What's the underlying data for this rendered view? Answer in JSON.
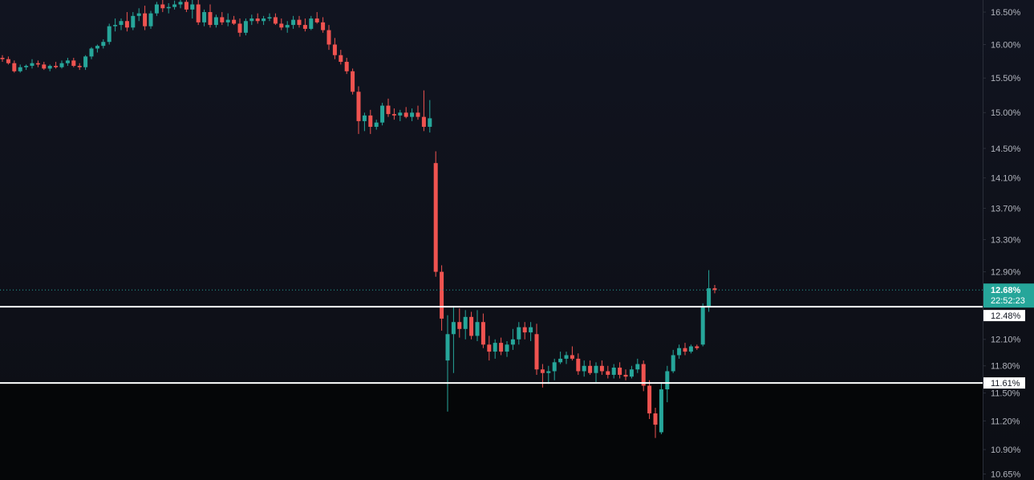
{
  "chart_data": {
    "type": "candlestick",
    "log_scale": true,
    "up_color": "#26a69a",
    "down_color": "#ef5350",
    "ylim": [
      10.59,
      16.69
    ],
    "yticks": [
      {
        "value": 16.5,
        "label": "16.50%"
      },
      {
        "value": 16.0,
        "label": "16.00%"
      },
      {
        "value": 15.5,
        "label": "15.50%"
      },
      {
        "value": 15.0,
        "label": "15.00%"
      },
      {
        "value": 14.5,
        "label": "14.50%"
      },
      {
        "value": 14.1,
        "label": "14.10%"
      },
      {
        "value": 13.7,
        "label": "13.70%"
      },
      {
        "value": 13.3,
        "label": "13.30%"
      },
      {
        "value": 12.9,
        "label": "12.90%"
      },
      {
        "value": 12.1,
        "label": "12.10%"
      },
      {
        "value": 11.8,
        "label": "11.80%"
      },
      {
        "value": 11.5,
        "label": "11.50%"
      },
      {
        "value": 11.2,
        "label": "11.20%"
      },
      {
        "value": 10.9,
        "label": "10.90%"
      },
      {
        "value": 10.65,
        "label": "10.65%"
      }
    ],
    "last_price": {
      "value": 12.68,
      "label": "12.68%"
    },
    "countdown": "22:52:23",
    "horizontal_lines": [
      {
        "value": 12.48,
        "label": "12.48%"
      },
      {
        "value": 11.61,
        "label": "11.61%"
      }
    ],
    "open": [
      15.8,
      15.78,
      15.72,
      15.6,
      15.66,
      15.68,
      15.72,
      15.7,
      15.64,
      15.68,
      15.66,
      15.72,
      15.76,
      15.68,
      15.66,
      15.82,
      15.94,
      15.98,
      16.04,
      16.28,
      16.3,
      16.36,
      16.26,
      16.44,
      16.48,
      16.28,
      16.48,
      16.62,
      16.56,
      16.58,
      16.62,
      16.66,
      16.54,
      16.62,
      16.34,
      16.5,
      16.3,
      16.42,
      16.34,
      16.38,
      16.32,
      16.18,
      16.36,
      16.4,
      16.36,
      16.4,
      16.42,
      16.32,
      16.26,
      16.3,
      16.38,
      16.3,
      16.24,
      16.4,
      16.34,
      16.22,
      16.0,
      15.84,
      15.74,
      15.6,
      15.3,
      14.88,
      14.96,
      14.8,
      14.86,
      15.1,
      14.98,
      14.96,
      15.0,
      14.94,
      15.0,
      14.94,
      14.8,
      14.3,
      12.9,
      11.86,
      12.16,
      12.3,
      12.22,
      12.36,
      12.14,
      12.3,
      12.04,
      11.96,
      12.06,
      11.96,
      12.04,
      12.1,
      12.24,
      12.18,
      12.16,
      11.76,
      11.72,
      11.74,
      11.84,
      11.88,
      11.92,
      11.88,
      11.74,
      11.8,
      11.72,
      11.8,
      11.74,
      11.7,
      11.78,
      11.7,
      11.68,
      11.76,
      11.82,
      11.58,
      11.28,
      11.08,
      11.54,
      11.74,
      11.92,
      12.0,
      11.96,
      12.02,
      12.04,
      12.48,
      12.7
    ],
    "high": [
      15.84,
      15.82,
      15.76,
      15.7,
      15.7,
      15.78,
      15.76,
      15.74,
      15.7,
      15.74,
      15.76,
      15.8,
      15.8,
      15.72,
      15.84,
      15.96,
      16.0,
      16.08,
      16.32,
      16.4,
      16.4,
      16.5,
      16.5,
      16.56,
      16.6,
      16.52,
      16.66,
      16.7,
      16.64,
      16.68,
      16.7,
      16.72,
      16.7,
      16.7,
      16.54,
      16.62,
      16.46,
      16.5,
      16.48,
      16.44,
      16.4,
      16.4,
      16.46,
      16.48,
      16.44,
      16.48,
      16.48,
      16.4,
      16.36,
      16.44,
      16.44,
      16.4,
      16.44,
      16.5,
      16.42,
      16.3,
      16.1,
      15.92,
      15.8,
      15.64,
      15.38,
      15.0,
      15.04,
      14.9,
      15.14,
      15.2,
      15.06,
      15.04,
      15.08,
      15.06,
      15.1,
      15.32,
      15.18,
      14.46,
      12.98,
      12.38,
      12.48,
      12.46,
      12.44,
      12.42,
      12.44,
      12.4,
      12.14,
      12.1,
      12.12,
      12.08,
      12.22,
      12.3,
      12.3,
      12.3,
      12.28,
      11.82,
      11.8,
      11.88,
      11.96,
      11.96,
      12.02,
      11.94,
      11.86,
      11.86,
      11.84,
      11.86,
      11.8,
      11.82,
      11.84,
      11.76,
      11.8,
      11.88,
      11.86,
      11.64,
      11.34,
      11.62,
      11.8,
      11.98,
      12.04,
      12.06,
      12.04,
      12.04,
      12.52,
      12.92,
      12.74
    ],
    "low": [
      15.74,
      15.7,
      15.58,
      15.58,
      15.62,
      15.64,
      15.66,
      15.62,
      15.6,
      15.64,
      15.64,
      15.68,
      15.66,
      15.62,
      15.62,
      15.78,
      15.88,
      15.94,
      16.0,
      16.2,
      16.22,
      16.2,
      16.22,
      16.36,
      16.22,
      16.24,
      16.44,
      16.5,
      16.48,
      16.54,
      16.56,
      16.5,
      16.4,
      16.3,
      16.28,
      16.26,
      16.26,
      16.3,
      16.28,
      16.3,
      16.12,
      16.14,
      16.3,
      16.32,
      16.3,
      16.36,
      16.3,
      16.22,
      16.18,
      16.24,
      16.26,
      16.2,
      16.22,
      16.32,
      16.18,
      15.92,
      15.78,
      15.7,
      15.56,
      15.26,
      14.7,
      14.74,
      14.7,
      14.76,
      14.82,
      14.94,
      14.9,
      14.88,
      14.92,
      14.88,
      14.9,
      14.74,
      14.72,
      12.84,
      12.2,
      11.3,
      11.72,
      12.12,
      12.1,
      12.1,
      12.08,
      12.0,
      11.86,
      11.88,
      11.92,
      11.9,
      11.98,
      12.04,
      12.1,
      12.08,
      11.7,
      11.56,
      11.6,
      11.64,
      11.82,
      11.82,
      11.86,
      11.7,
      11.68,
      11.7,
      11.62,
      11.7,
      11.66,
      11.66,
      11.66,
      11.64,
      11.66,
      11.72,
      11.52,
      11.22,
      11.02,
      11.06,
      11.4,
      11.72,
      11.88,
      11.92,
      11.94,
      11.98,
      12.02,
      12.42,
      12.64
    ],
    "close": [
      15.78,
      15.72,
      15.6,
      15.66,
      15.68,
      15.72,
      15.7,
      15.64,
      15.68,
      15.66,
      15.72,
      15.76,
      15.68,
      15.66,
      15.82,
      15.94,
      15.98,
      16.04,
      16.28,
      16.3,
      16.36,
      16.26,
      16.44,
      16.48,
      16.28,
      16.48,
      16.62,
      16.56,
      16.58,
      16.62,
      16.66,
      16.54,
      16.62,
      16.34,
      16.5,
      16.3,
      16.42,
      16.34,
      16.38,
      16.32,
      16.18,
      16.36,
      16.4,
      16.36,
      16.4,
      16.42,
      16.32,
      16.26,
      16.3,
      16.38,
      16.3,
      16.24,
      16.4,
      16.34,
      16.22,
      16.0,
      15.84,
      15.74,
      15.6,
      15.3,
      14.88,
      14.96,
      14.8,
      14.86,
      15.1,
      14.98,
      14.96,
      15.0,
      14.94,
      15.0,
      14.94,
      14.8,
      14.92,
      12.9,
      12.34,
      12.16,
      12.3,
      12.22,
      12.36,
      12.14,
      12.3,
      12.04,
      11.96,
      12.06,
      11.96,
      12.04,
      12.1,
      12.24,
      12.18,
      12.24,
      11.76,
      11.72,
      11.74,
      11.84,
      11.88,
      11.92,
      11.88,
      11.74,
      11.8,
      11.72,
      11.8,
      11.74,
      11.7,
      11.78,
      11.7,
      11.68,
      11.76,
      11.82,
      11.58,
      11.28,
      11.16,
      11.54,
      11.74,
      11.92,
      12.0,
      11.96,
      12.02,
      12.0,
      12.48,
      12.7,
      12.68
    ]
  }
}
